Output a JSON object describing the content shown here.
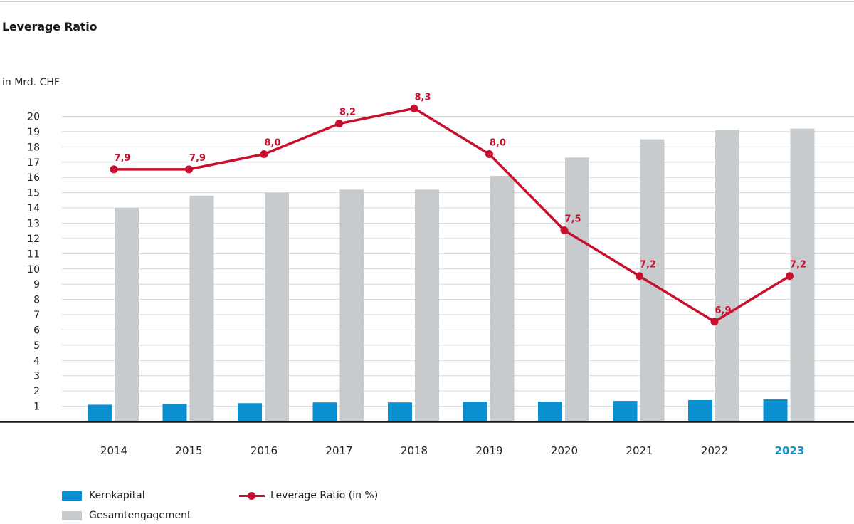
{
  "title": "Leverage Ratio",
  "unit_label": "in Mrd. CHF",
  "colors": {
    "kernkapital": "#0a8fd0",
    "gesamtengagement": "#c7cbcd",
    "leverage_ratio": "#c8102e",
    "current_year": "#1a8fc9",
    "grid": "#d6d6d6"
  },
  "legend": {
    "kernkapital": "Kernkapital",
    "gesamtengagement": "Gesamtengagement",
    "leverage_ratio": "Leverage Ratio (in %)"
  },
  "chart_data": {
    "type": "bar",
    "categories": [
      "2014",
      "2015",
      "2016",
      "2017",
      "2018",
      "2019",
      "2020",
      "2021",
      "2022",
      "2023"
    ],
    "highlight_category": "2023",
    "y_ticks": [
      "1",
      "2",
      "3",
      "4",
      "5",
      "6",
      "7",
      "8",
      "9",
      "10",
      "11",
      "12",
      "13",
      "14",
      "15",
      "16",
      "17",
      "18",
      "19",
      "20"
    ],
    "ylim": [
      0,
      20
    ],
    "grid": true,
    "legend_position": "bottom-left",
    "series": [
      {
        "name": "Kernkapital",
        "type": "bar",
        "values": [
          1.1,
          1.15,
          1.2,
          1.25,
          1.25,
          1.3,
          1.3,
          1.35,
          1.4,
          1.45
        ]
      },
      {
        "name": "Gesamtengagement",
        "type": "bar",
        "values": [
          14.0,
          14.8,
          15.0,
          15.2,
          15.2,
          16.1,
          17.3,
          18.5,
          19.1,
          19.2
        ]
      },
      {
        "name": "Leverage Ratio (in %)",
        "type": "line",
        "values": [
          7.9,
          7.9,
          8.0,
          8.2,
          8.3,
          8.0,
          7.5,
          7.2,
          6.9,
          7.2
        ],
        "labels": [
          "7,9",
          "7,9",
          "8,0",
          "8,2",
          "8,3",
          "8,0",
          "7,5",
          "7,2",
          "6,9",
          "7,2"
        ]
      }
    ]
  }
}
